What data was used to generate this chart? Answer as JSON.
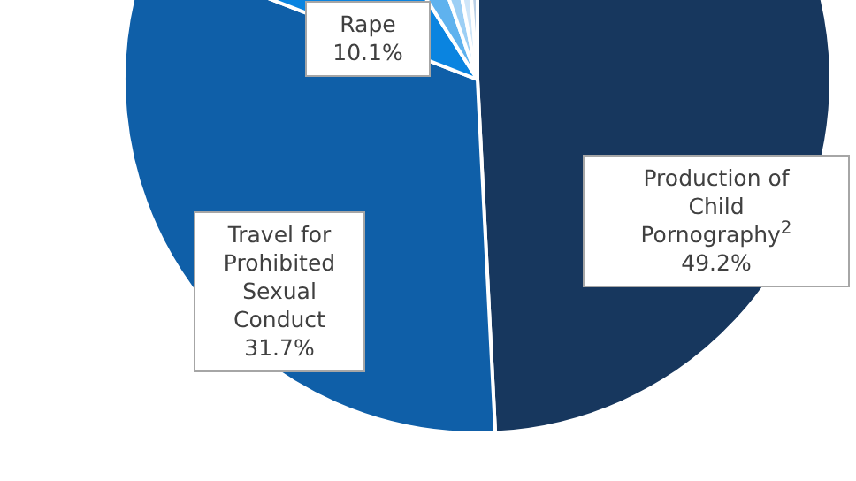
{
  "chart_data": {
    "type": "pie",
    "categories": [
      "Production of Child Pornography$^{2}$",
      "Travel for Prohibited Sexual Conduct",
      "Rape",
      null,
      null,
      null,
      null
    ],
    "values": [
      49.2,
      31.7,
      10.1,
      3.6,
      2.4,
      1.8,
      1.2
    ],
    "value_labels": [
      "49.2%",
      "31.7%",
      "10.1%",
      null,
      null,
      null,
      null
    ],
    "colors": [
      "#17375e",
      "#0f5fa8",
      "#0a84e0",
      "#5fb2ee",
      "#9ccff5",
      "#cfe6f9",
      "#b9cfe6"
    ]
  }
}
